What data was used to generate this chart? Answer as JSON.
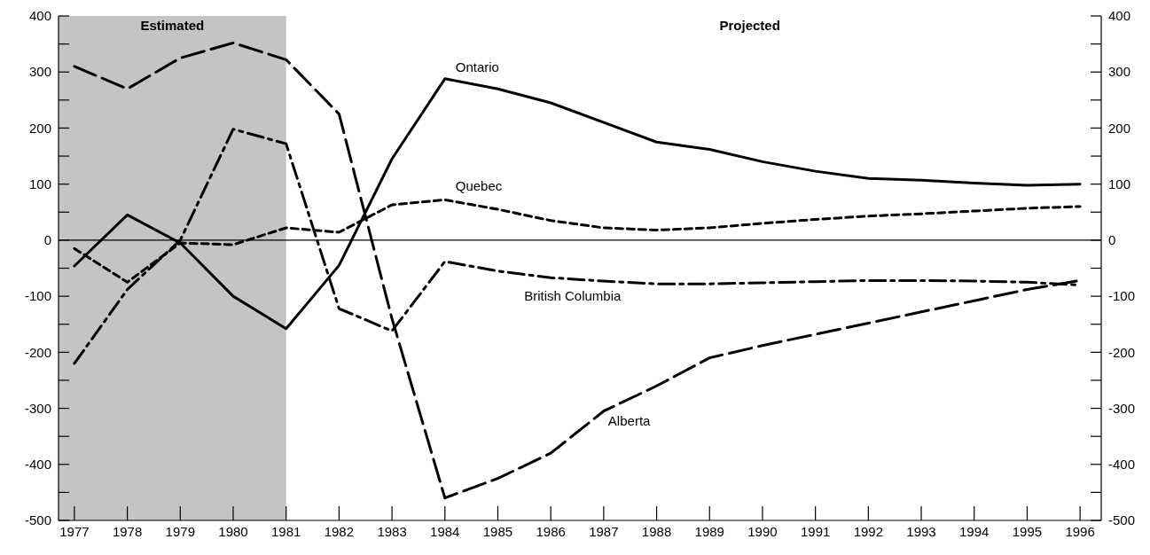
{
  "chart_data": {
    "type": "line",
    "x": [
      1977,
      1978,
      1979,
      1980,
      1981,
      1982,
      1983,
      1984,
      1985,
      1986,
      1987,
      1988,
      1989,
      1990,
      1991,
      1992,
      1993,
      1994,
      1995,
      1996
    ],
    "series": [
      {
        "name": "Ontario",
        "color": "#000000",
        "line_style": "solid",
        "values": [
          -46,
          45,
          -5,
          -100,
          -158,
          -45,
          145,
          288,
          270,
          245,
          210,
          175,
          162,
          140,
          123,
          110,
          107,
          102,
          98,
          100
        ]
      },
      {
        "name": "Quebec",
        "color": "#000000",
        "line_style": "dotted",
        "values": [
          -15,
          -75,
          -5,
          -8,
          22,
          14,
          63,
          72,
          55,
          35,
          22,
          18,
          22,
          30,
          37,
          43,
          47,
          52,
          57,
          60
        ]
      },
      {
        "name": "British Columbia",
        "color": "#000000",
        "line_style": "dashdot",
        "values": [
          -220,
          -88,
          0,
          198,
          172,
          -122,
          -162,
          -38,
          -55,
          -67,
          -73,
          -78,
          -78,
          -76,
          -74,
          -72,
          -72,
          -73,
          -75,
          -80
        ]
      },
      {
        "name": "Alberta",
        "color": "#000000",
        "line_style": "dashed",
        "values": [
          310,
          270,
          325,
          352,
          322,
          225,
          -140,
          -460,
          -425,
          -380,
          -305,
          -260,
          -210,
          -188,
          -168,
          -148,
          -128,
          -108,
          -88,
          -72
        ]
      }
    ],
    "xlim": [
      1976.7,
      1996.4
    ],
    "xticks": [
      1977,
      1978,
      1979,
      1980,
      1981,
      1982,
      1983,
      1984,
      1985,
      1986,
      1987,
      1988,
      1989,
      1990,
      1991,
      1992,
      1993,
      1994,
      1995,
      1996
    ],
    "ylim": [
      -500,
      400
    ],
    "yticks": [
      -500,
      {
        "value": -450,
        "label": null
      },
      -400,
      {
        "value": -350,
        "label": null
      },
      -300,
      {
        "value": -250,
        "label": null
      },
      -200,
      {
        "value": -150,
        "label": null
      },
      -100,
      {
        "value": -50,
        "label": null
      },
      0,
      {
        "value": 50,
        "label": null
      },
      100,
      {
        "value": 150,
        "label": null
      },
      200,
      {
        "value": 250,
        "label": null
      },
      300,
      {
        "value": 350,
        "label": null
      },
      400
    ],
    "y2lim": [
      -500,
      400
    ],
    "y2ticks": [
      -500,
      {
        "value": -450,
        "label": null
      },
      -400,
      {
        "value": -350,
        "label": null
      },
      -300,
      {
        "value": -250,
        "label": null
      },
      -200,
      {
        "value": -150,
        "label": null
      },
      -100,
      {
        "value": -50,
        "label": null
      },
      0,
      {
        "value": 50,
        "label": null
      },
      100,
      {
        "value": 150,
        "label": null
      },
      200,
      {
        "value": 250,
        "label": null
      },
      300,
      {
        "value": 350,
        "label": null
      },
      400
    ],
    "bands": [
      {
        "axis": "x",
        "from": 1976.7,
        "to": 1981,
        "label": "Estimated",
        "color": "#c4c4c4"
      }
    ],
    "ref_lines": [
      {
        "axis": "y",
        "value": 0,
        "color": "#000000"
      }
    ],
    "annotations": [
      "Projected"
    ],
    "grid": false,
    "marker": "none"
  }
}
